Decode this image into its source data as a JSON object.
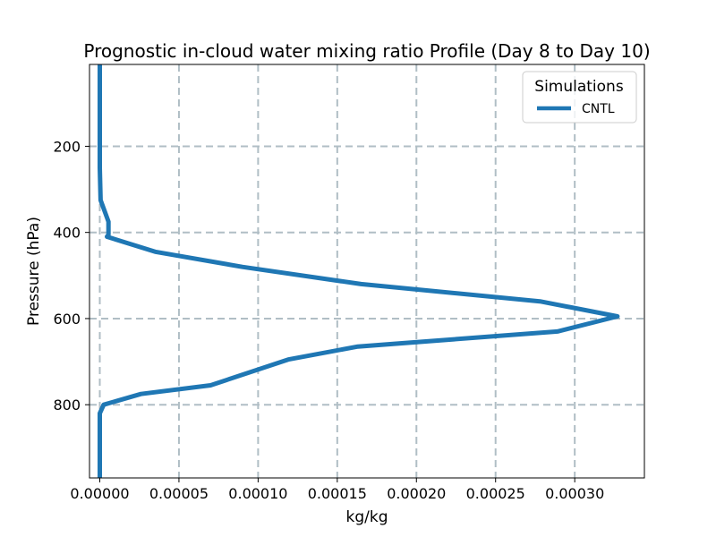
{
  "chart_data": {
    "type": "line",
    "title": "Prognostic in-cloud water mixing ratio Profile (Day 8 to Day 10)",
    "xlabel": "kg/kg",
    "ylabel": "Pressure (hPa)",
    "xlim": [
      -6.5e-06,
      0.000344
    ],
    "ylim": [
      970,
      10
    ],
    "y_inverted": true,
    "x_ticks": [
      0.0,
      5e-05,
      0.0001,
      0.00015,
      0.0002,
      0.00025,
      0.0003
    ],
    "x_tick_labels": [
      "0.00000",
      "0.00005",
      "0.00010",
      "0.00015",
      "0.00020",
      "0.00025",
      "0.00030"
    ],
    "y_ticks": [
      200,
      400,
      600,
      800
    ],
    "y_tick_labels": [
      "200",
      "400",
      "600",
      "800"
    ],
    "grid": true,
    "legend": {
      "title": "Simulations",
      "placement": "top-right"
    },
    "series": [
      {
        "name": "CNTL",
        "color": "#1f77b4",
        "x": [
          0.0,
          0.0,
          0.0,
          0.0,
          0.0,
          0.0,
          5e-07,
          3e-06,
          5.5e-06,
          5.5e-06,
          4.5e-06,
          3.5e-05,
          9e-05,
          0.000165,
          0.000278,
          0.000327,
          0.000289,
          0.000163,
          0.000119,
          7e-05,
          2.6e-05,
          2.5e-06,
          0.0,
          0.0,
          0.0,
          0.0
        ],
        "y": [
          10,
          50,
          100,
          150,
          200,
          250,
          325,
          350,
          375,
          405,
          410,
          445,
          480,
          520,
          560,
          595,
          630,
          665,
          695,
          755,
          775,
          800,
          820,
          850,
          900,
          970
        ]
      }
    ]
  }
}
